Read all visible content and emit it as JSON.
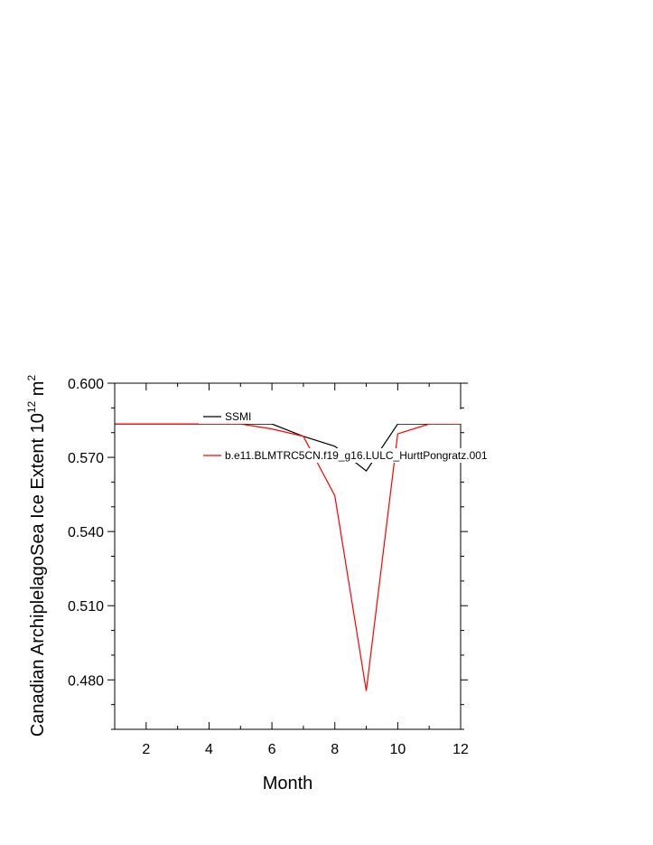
{
  "chart_data": {
    "type": "line",
    "xlabel": "Month",
    "ylabel": "Canadian ArchiplelagoSea Ice Extent 10",
    "ylabel_exponent": "12",
    "ylabel_unit": " m",
    "ylabel_unit_exponent": "2",
    "xlim": [
      1,
      12
    ],
    "ylim": [
      0.46,
      0.6
    ],
    "xticks": [
      2,
      4,
      6,
      8,
      10,
      12
    ],
    "xtick_labels": [
      "2",
      "4",
      "6",
      "8",
      "10",
      "12"
    ],
    "yticks": [
      0.48,
      0.51,
      0.54,
      0.57,
      0.6
    ],
    "ytick_labels": [
      "0.480",
      "0.510",
      "0.540",
      "0.570",
      "0.600"
    ],
    "grid": false,
    "legend_position": "top-center",
    "x": [
      1,
      2,
      3,
      4,
      5,
      6,
      7,
      8,
      9,
      10,
      11,
      12
    ],
    "series": [
      {
        "name": "SSMI",
        "color": "#000000",
        "values": [
          0.5835,
          0.5835,
          0.5835,
          0.5835,
          0.5835,
          0.5835,
          0.5785,
          0.5745,
          0.5645,
          0.5835,
          0.5835,
          0.5835
        ]
      },
      {
        "name": "b.e11.BLMTRC5CN.f19_g16.LULC_HurttPongratz.001",
        "color": "#ff0000",
        "values": [
          0.5835,
          0.5835,
          0.5835,
          0.5835,
          0.5835,
          0.5815,
          0.5785,
          0.5545,
          0.4755,
          0.5795,
          0.5835,
          0.5835
        ]
      }
    ]
  }
}
